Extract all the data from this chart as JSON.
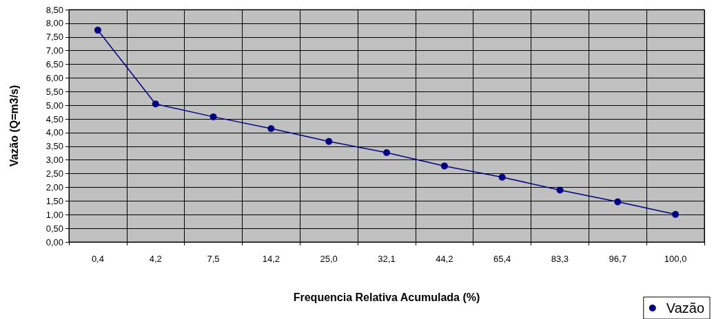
{
  "chart_data": {
    "type": "line",
    "xlabel": "Frequencia Relativa Acumulada (%)",
    "ylabel": "Vazão (Q=m3/s)",
    "categories": [
      "0,4",
      "4,2",
      "7,5",
      "14,2",
      "25,0",
      "32,1",
      "44,2",
      "65,4",
      "83,3",
      "96,7",
      "100,0"
    ],
    "series": [
      {
        "name": "Vazão",
        "color": "#000080",
        "values": [
          7.75,
          5.05,
          4.58,
          4.15,
          3.68,
          3.27,
          2.78,
          2.37,
          1.9,
          1.47,
          1.01
        ]
      }
    ],
    "ylim": [
      0,
      8.5
    ],
    "yticks": [
      {
        "value": 0,
        "label": "0,00"
      },
      {
        "value": 0.5,
        "label": "0,50"
      },
      {
        "value": 1,
        "label": "1,00"
      },
      {
        "value": 1.5,
        "label": "1,50"
      },
      {
        "value": 2,
        "label": "2,00"
      },
      {
        "value": 2.5,
        "label": "2,50"
      },
      {
        "value": 3,
        "label": "3,00"
      },
      {
        "value": 3.5,
        "label": "3,50"
      },
      {
        "value": 4,
        "label": "4,00"
      },
      {
        "value": 4.5,
        "label": "4,50"
      },
      {
        "value": 5,
        "label": "5,00"
      },
      {
        "value": 5.5,
        "label": "5,50"
      },
      {
        "value": 6,
        "label": "6,00"
      },
      {
        "value": 6.5,
        "label": "6,50"
      },
      {
        "value": 7,
        "label": "7,00"
      },
      {
        "value": 7.5,
        "label": "7,50"
      },
      {
        "value": 8,
        "label": "8,00"
      },
      {
        "value": 8.5,
        "label": "8,50"
      }
    ],
    "grid": true,
    "legend": "bottom right",
    "marker": "circle",
    "line_style": "solid"
  }
}
